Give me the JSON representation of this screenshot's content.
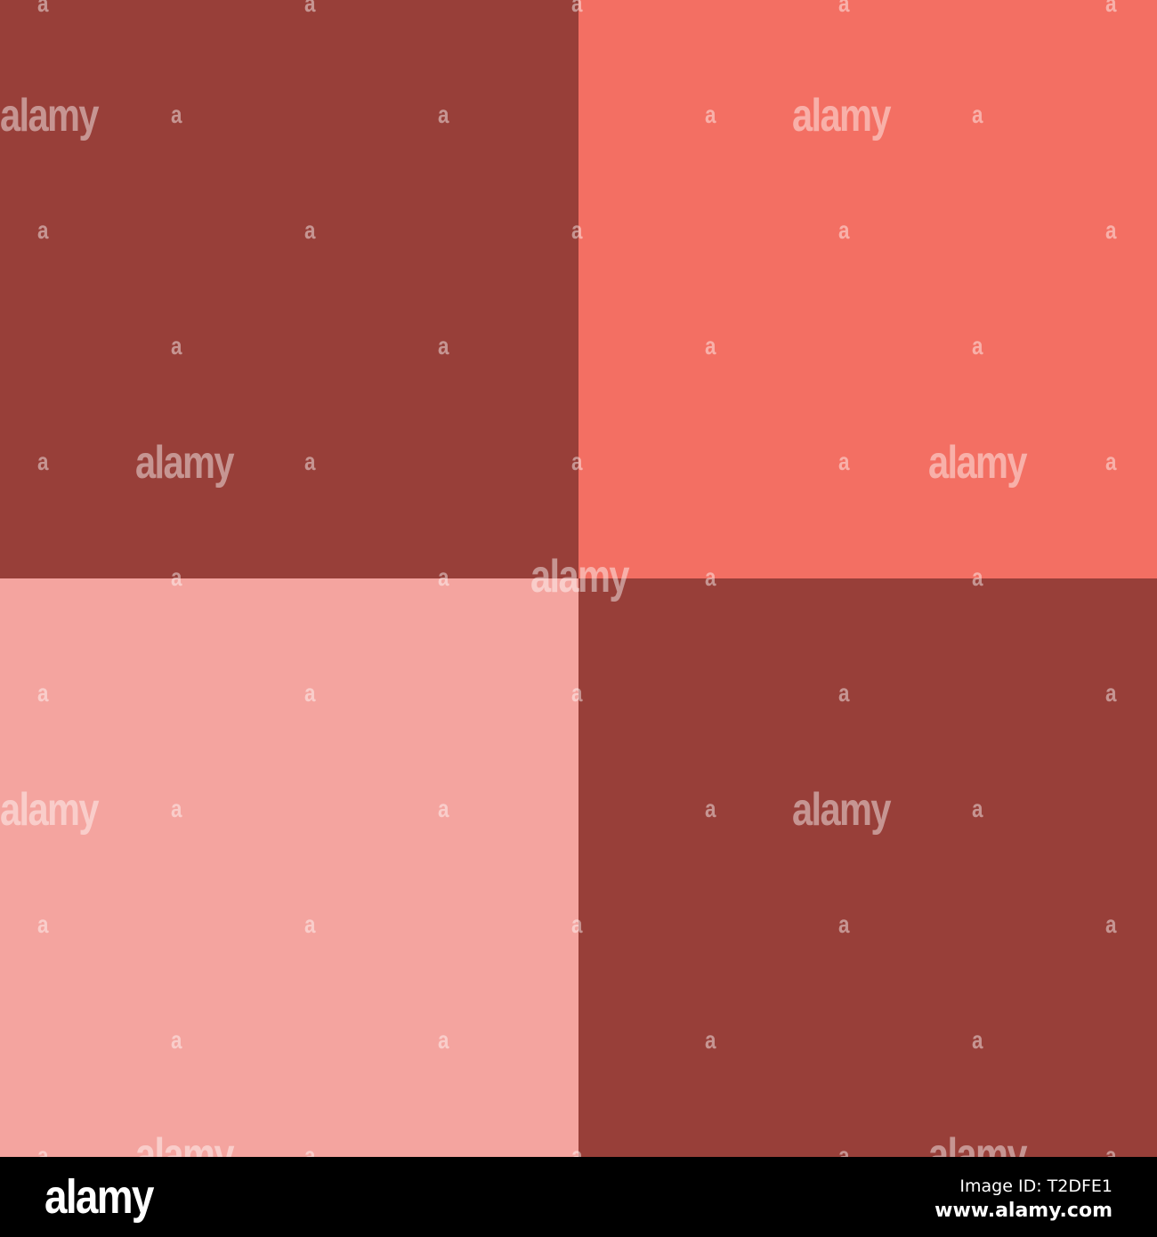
{
  "tiles": [
    {
      "position": "top-left",
      "color": "#983f39"
    },
    {
      "position": "top-right",
      "color": "#f36f63"
    },
    {
      "position": "bottom-left",
      "color": "#f4a49f"
    },
    {
      "position": "bottom-right",
      "color": "#983f39"
    }
  ],
  "watermark": {
    "text": "alamy",
    "letter": "a"
  },
  "footer": {
    "logo": "alamy",
    "image_id": "Image ID: T2DFE1",
    "url": "www.alamy.com"
  }
}
